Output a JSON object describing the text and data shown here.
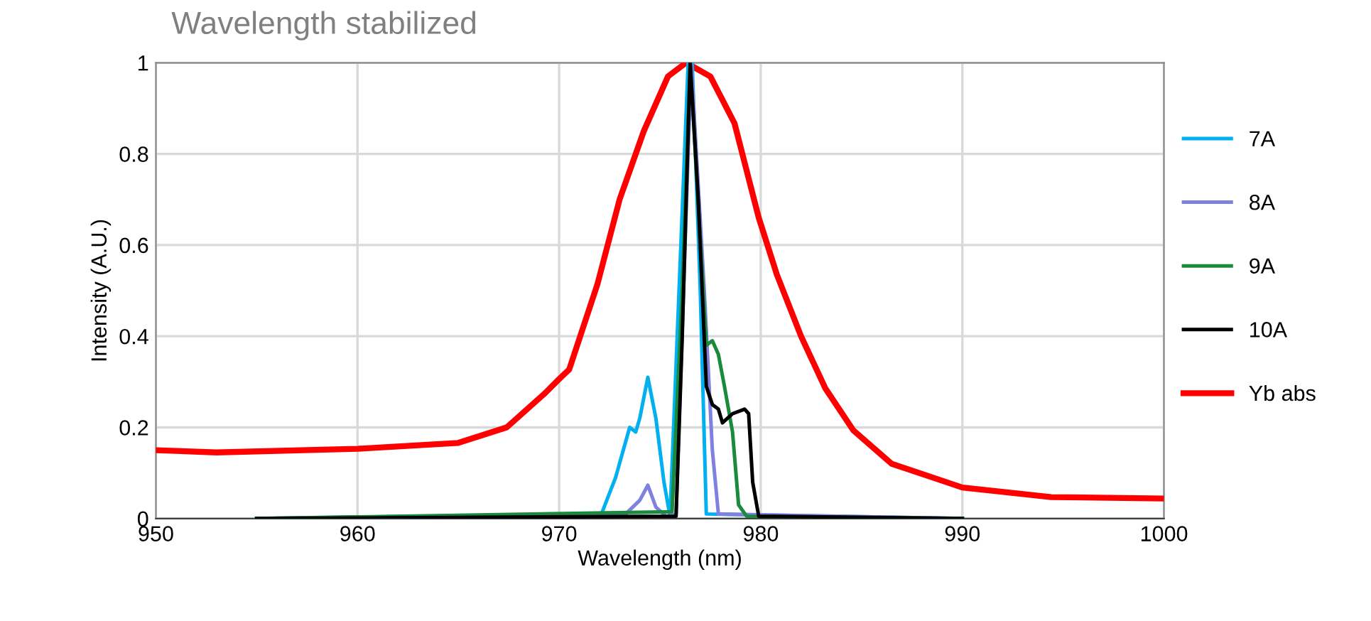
{
  "chart_data": {
    "type": "line",
    "title": "Wavelength stabilized",
    "xlabel": "Wavelength (nm)",
    "ylabel": "Intensity (A.U.)",
    "xlim": [
      950,
      1000
    ],
    "ylim": [
      0,
      1
    ],
    "xticks": [
      950,
      960,
      970,
      980,
      990,
      1000
    ],
    "yticks": [
      0,
      0.2,
      0.4,
      0.6,
      0.8,
      1
    ],
    "grid": true,
    "legend": "right",
    "marker": "none",
    "line_style": "solid",
    "series": [
      {
        "name": "7A",
        "color": "#00b0f0",
        "x": [
          955,
          972.1,
          972.8,
          973.5,
          973.8,
          974.0,
          974.4,
          974.8,
          975.2,
          975.5,
          976.4,
          976.6,
          977.0,
          977.3,
          990
        ],
        "values": [
          0,
          0.01,
          0.09,
          0.2,
          0.19,
          0.22,
          0.31,
          0.22,
          0.08,
          0.005,
          1.0,
          1.0,
          0.5,
          0.01,
          0
        ]
      },
      {
        "name": "8A",
        "color": "#8080e0",
        "x": [
          955,
          973.3,
          974.0,
          974.4,
          974.8,
          975.3,
          975.8,
          976.55,
          977.2,
          977.6,
          977.9,
          990
        ],
        "values": [
          0,
          0.01,
          0.04,
          0.073,
          0.025,
          0.005,
          0.01,
          1.0,
          0.5,
          0.15,
          0.01,
          0
        ]
      },
      {
        "name": "9A",
        "color": "#1a8a3c",
        "x": [
          955,
          975.6,
          976.1,
          976.5,
          977.3,
          977.6,
          977.9,
          978.2,
          978.6,
          978.9,
          979.3,
          990
        ],
        "values": [
          0,
          0.015,
          0.49,
          1.0,
          0.38,
          0.39,
          0.36,
          0.29,
          0.19,
          0.03,
          0.005,
          0
        ]
      },
      {
        "name": "10A",
        "color": "#000000",
        "x": [
          955,
          975.8,
          976.1,
          976.5,
          976.9,
          977.3,
          977.6,
          977.9,
          978.1,
          978.6,
          979.2,
          979.4,
          979.6,
          979.9,
          990
        ],
        "values": [
          0,
          0.005,
          0.39,
          1.0,
          0.7,
          0.29,
          0.25,
          0.24,
          0.21,
          0.23,
          0.24,
          0.23,
          0.08,
          0.005,
          0
        ]
      },
      {
        "name": "Yb abs",
        "color": "#ff0000",
        "x": [
          950,
          953,
          960,
          965,
          967.4,
          969.3,
          970,
          970.5,
          971.9,
          973.0,
          974.2,
          975.4,
          976.3,
          977.5,
          978.7,
          979.9,
          980.8,
          982.0,
          983.2,
          984.6,
          986.5,
          990,
          994.4,
          1000
        ],
        "values": [
          0.15,
          0.145,
          0.153,
          0.166,
          0.2,
          0.275,
          0.306,
          0.327,
          0.514,
          0.7,
          0.85,
          0.97,
          1.0,
          0.97,
          0.867,
          0.66,
          0.535,
          0.4,
          0.286,
          0.193,
          0.12,
          0.068,
          0.047,
          0.044
        ]
      }
    ]
  }
}
